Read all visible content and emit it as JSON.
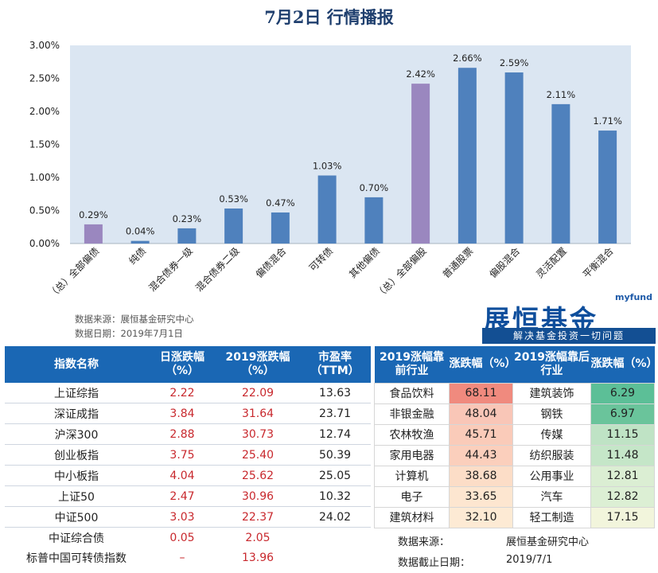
{
  "title": "7月2日   行情播报",
  "chart_data": {
    "type": "bar",
    "categories": [
      "（总）全部偏债",
      "纯债",
      "混合债券一级",
      "混合债券二级",
      "偏债混合",
      "可转债",
      "其他偏债",
      "（总）全部偏股",
      "普通股票",
      "偏股混合",
      "灵活配置",
      "平衡混合"
    ],
    "values": [
      0.29,
      0.04,
      0.23,
      0.53,
      0.47,
      1.03,
      0.7,
      2.42,
      2.66,
      2.59,
      2.11,
      1.71
    ],
    "value_labels": [
      "0.29%",
      "0.04%",
      "0.23%",
      "0.53%",
      "0.47%",
      "1.03%",
      "0.70%",
      "2.42%",
      "2.66%",
      "2.59%",
      "2.11%",
      "1.71%"
    ],
    "bar_colors": [
      "#9a87bf",
      "#4f81bd",
      "#4f81bd",
      "#4f81bd",
      "#4f81bd",
      "#4f81bd",
      "#4f81bd",
      "#9a87bf",
      "#4f81bd",
      "#4f81bd",
      "#4f81bd",
      "#4f81bd"
    ],
    "ylim": [
      0,
      3.0
    ],
    "yticks": [
      "0.00%",
      "0.50%",
      "1.00%",
      "1.50%",
      "2.00%",
      "2.50%",
      "3.00%"
    ],
    "plot_bg": "#dbe6f2",
    "grid": false
  },
  "source": {
    "line1": "数据来源：展恒基金研究中心",
    "line2": "数据日期：2019年7月1日"
  },
  "logo": {
    "brand": "myfund",
    "name": "展恒基金",
    "slogan": "解决基金投资一切问题"
  },
  "left_table": {
    "headers": [
      "指数名称",
      "日涨跌幅（%）",
      "2019涨跌幅（%）",
      "市盈率（TTM）"
    ],
    "rows": [
      {
        "name": "上证综指",
        "day": "2.22",
        "ytd": "22.09",
        "pe": "13.63"
      },
      {
        "name": "深证成指",
        "day": "3.84",
        "ytd": "31.64",
        "pe": "23.71"
      },
      {
        "name": "沪深300",
        "day": "2.88",
        "ytd": "30.73",
        "pe": "12.74"
      },
      {
        "name": "创业板指",
        "day": "3.75",
        "ytd": "25.40",
        "pe": "50.39"
      },
      {
        "name": "中小板指",
        "day": "4.04",
        "ytd": "25.62",
        "pe": "25.05"
      },
      {
        "name": "上证50",
        "day": "2.47",
        "ytd": "30.96",
        "pe": "10.32"
      },
      {
        "name": "中证500",
        "day": "3.03",
        "ytd": "22.37",
        "pe": "24.02"
      },
      {
        "name": "中证综合债",
        "day": "0.05",
        "ytd": "2.05",
        "pe": ""
      },
      {
        "name": "标普中国可转债指数",
        "day": "–",
        "ytd": "13.96",
        "pe": ""
      }
    ]
  },
  "right_table": {
    "headers": [
      "2019涨幅靠前行业",
      "涨跌幅（%）",
      "2019涨幅靠后行业",
      "涨跌幅（%）"
    ],
    "rows": [
      {
        "top": "食品饮料",
        "top_val": "68.11",
        "top_bg": "#f08a7e",
        "bot": "建筑装饰",
        "bot_val": "6.29",
        "bot_bg": "#5cbf97"
      },
      {
        "top": "非银金融",
        "top_val": "48.04",
        "top_bg": "#f9c6b7",
        "bot": "钢铁",
        "bot_val": "6.97",
        "bot_bg": "#6ac49b"
      },
      {
        "top": "农林牧渔",
        "top_val": "45.71",
        "top_bg": "#facbb9",
        "bot": "传媒",
        "bot_val": "11.15",
        "bot_bg": "#bfe3c5"
      },
      {
        "top": "家用电器",
        "top_val": "44.43",
        "top_bg": "#fbcfbc",
        "bot": "纺织服装",
        "bot_val": "11.48",
        "bot_bg": "#c5e6c8"
      },
      {
        "top": "计算机",
        "top_val": "38.68",
        "top_bg": "#fcddc7",
        "bot": "公用事业",
        "bot_val": "12.81",
        "bot_bg": "#dbeed3"
      },
      {
        "top": "电子",
        "top_val": "33.65",
        "top_bg": "#fde6d0",
        "bot": "汽车",
        "bot_val": "12.82",
        "bot_bg": "#dcefd4"
      },
      {
        "top": "建筑材料",
        "top_val": "32.10",
        "top_bg": "#fdead4",
        "bot": "轻工制造",
        "bot_val": "17.15",
        "bot_bg": "#f2f5dc"
      }
    ],
    "footer_source_label": "数据来源：",
    "footer_source_value": "展恒基金研究中心",
    "footer_date_label": "数据截止日期：",
    "footer_date_value": "2019/7/1"
  }
}
